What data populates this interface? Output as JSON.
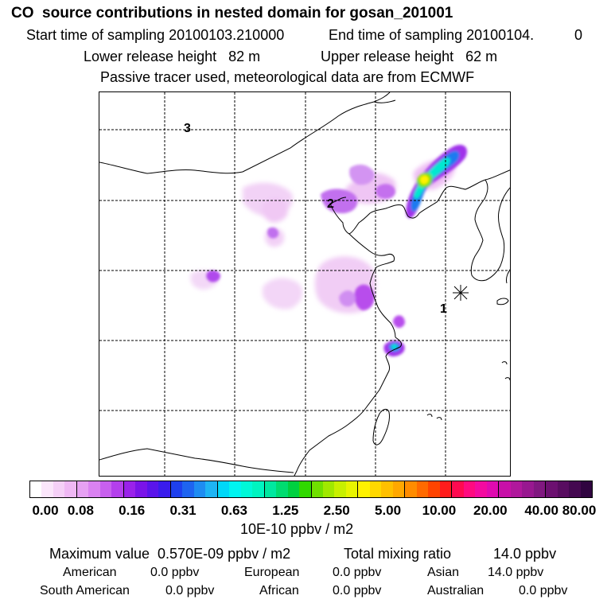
{
  "header": {
    "title": "CO  source contributions in nested domain for gosan_201001",
    "start_label": "Start time of sampling 20100103.210000",
    "end_label": "End time of sampling 20100104.",
    "end_suffix": "0",
    "lower_height": "Lower release height   82 m",
    "upper_height": "Upper release height   62 m",
    "tracer_note": "Passive tracer used, meteorological data are from ECMWF"
  },
  "map": {
    "labels": [
      "1",
      "2",
      "3"
    ],
    "receptor_marker": "asterisk-icon"
  },
  "colorbar": {
    "ticks": [
      "0.00",
      "0.08",
      "0.16",
      "0.31",
      "0.63",
      "1.25",
      "2.50",
      "5.00",
      "10.00",
      "20.00",
      "40.00",
      "80.00"
    ],
    "units": "10E-10 ppbv / m2",
    "segments": [
      [
        "#ffffff",
        "#fbe6fb",
        "#f5d0f7",
        "#efb8f4"
      ],
      [
        "#e6a1f3",
        "#da82f1",
        "#c860ee",
        "#b43fec"
      ],
      [
        "#9a22ea",
        "#7a14e8",
        "#5a14ea",
        "#3a1cec"
      ],
      [
        "#1e40ee",
        "#1e64f0",
        "#1e8cf2",
        "#1eb4f4"
      ],
      [
        "#00d8f8",
        "#00f4f0",
        "#00f8d8",
        "#00f4c0"
      ],
      [
        "#00e8a0",
        "#00dc70",
        "#00d040",
        "#30d800"
      ],
      [
        "#70e000",
        "#a0e800",
        "#c8f000",
        "#e8f400"
      ],
      [
        "#fff200",
        "#ffd800",
        "#ffc000",
        "#ffa800"
      ],
      [
        "#ff8c00",
        "#ff6a00",
        "#ff4400",
        "#ff1c1c"
      ],
      [
        "#ff0a50",
        "#ff0a80",
        "#f40aa0",
        "#e00ab0"
      ],
      [
        "#c810a8",
        "#b0189c",
        "#981890",
        "#801880"
      ],
      [
        "#6c1070",
        "#580c60",
        "#440850",
        "#300440"
      ]
    ]
  },
  "summary": {
    "max_value": "Maximum value  0.570E-09 ppbv / m2",
    "total_label": "Total mixing ratio",
    "total_value": "14.0 ppbv",
    "regions": [
      {
        "name": "American",
        "value": "0.0 ppbv"
      },
      {
        "name": "European",
        "value": "0.0 ppbv"
      },
      {
        "name": "Asian",
        "value": "14.0 ppbv"
      },
      {
        "name": "South American",
        "value": "0.0 ppbv"
      },
      {
        "name": "African",
        "value": "0.0 ppbv"
      },
      {
        "name": "Australian",
        "value": "0.0 ppbv"
      }
    ]
  }
}
